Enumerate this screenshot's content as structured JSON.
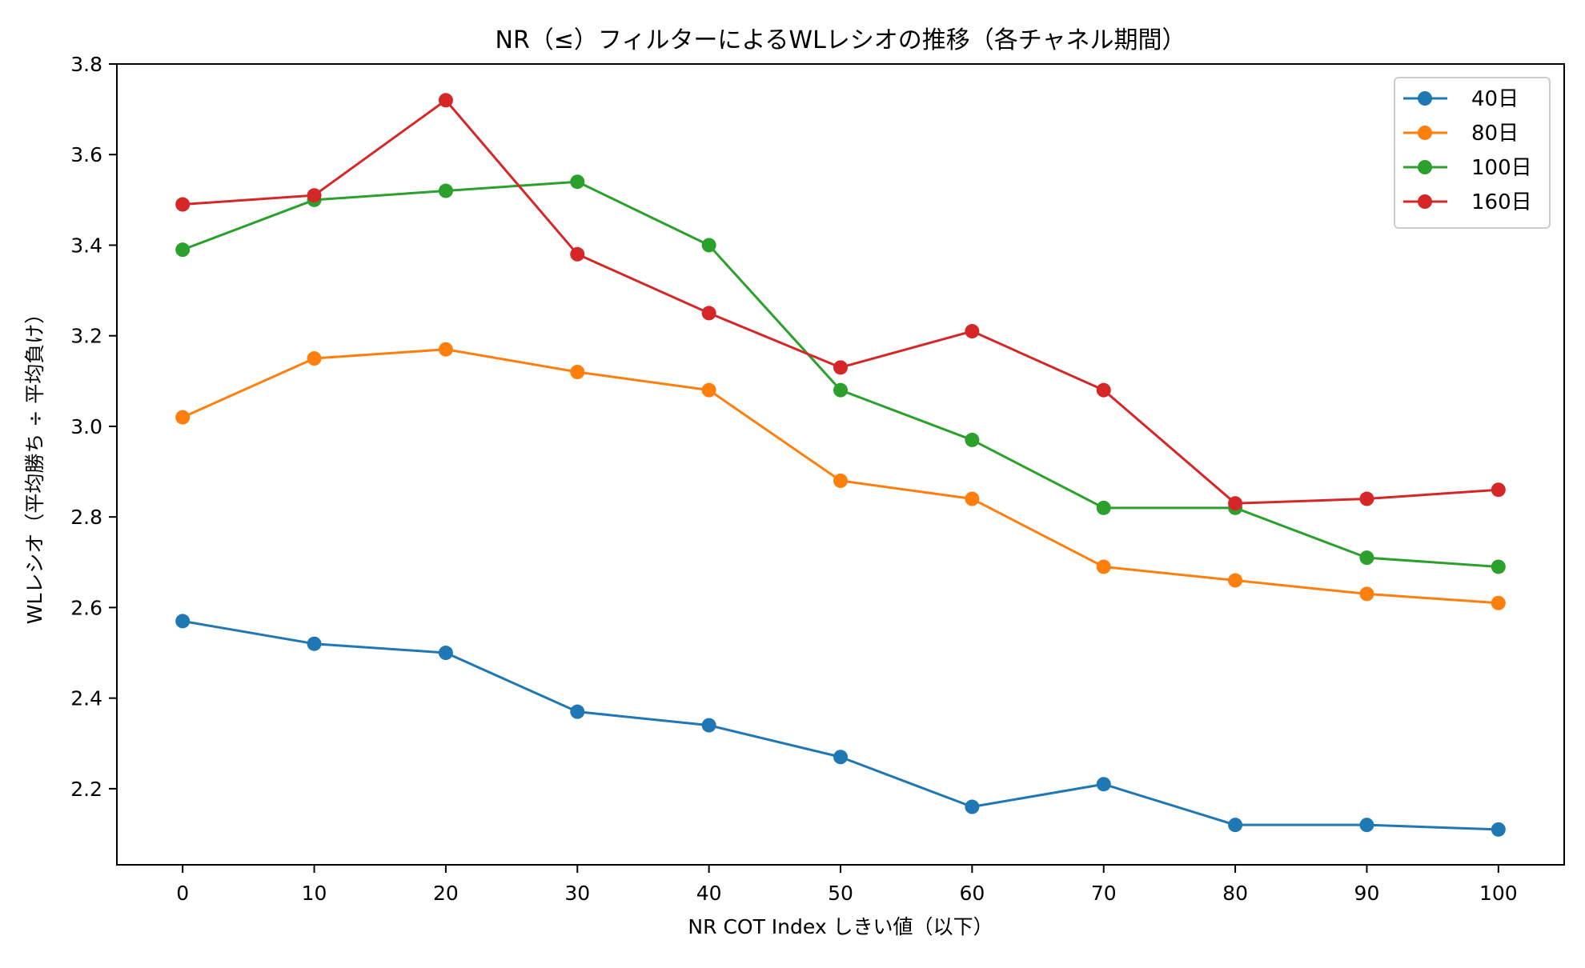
{
  "chart_data": {
    "type": "line",
    "title": "NR（≤）フィルターによるWLレシオの推移（各チャネル期間）",
    "xlabel": "NR COT Index しきい値（以下）",
    "ylabel": "WLレシオ（平均勝ち ÷ 平均負け）",
    "x": [
      0,
      10,
      20,
      30,
      40,
      50,
      60,
      70,
      80,
      90,
      100
    ],
    "xticks": [
      "0",
      "10",
      "20",
      "30",
      "40",
      "50",
      "60",
      "70",
      "80",
      "90",
      "100"
    ],
    "yticks": [
      "2.2",
      "2.4",
      "2.6",
      "2.8",
      "3.0",
      "3.2",
      "3.4",
      "3.6",
      "3.8"
    ],
    "xlim": [
      -5,
      105
    ],
    "ylim": [
      2.032,
      3.8
    ],
    "grid": false,
    "legend_position": "top-right",
    "series": [
      {
        "name": "40日",
        "color": "#1f77b4",
        "values": [
          2.57,
          2.52,
          2.5,
          2.37,
          2.34,
          2.27,
          2.16,
          2.21,
          2.12,
          2.12,
          2.11
        ]
      },
      {
        "name": "80日",
        "color": "#ff7f0e",
        "values": [
          3.02,
          3.15,
          3.17,
          3.12,
          3.08,
          2.88,
          2.84,
          2.69,
          2.66,
          2.63,
          2.61
        ]
      },
      {
        "name": "100日",
        "color": "#2ca02c",
        "values": [
          3.39,
          3.5,
          3.52,
          3.54,
          3.4,
          3.08,
          2.97,
          2.82,
          2.82,
          2.71,
          2.69
        ]
      },
      {
        "name": "160日",
        "color": "#d62728",
        "values": [
          3.49,
          3.51,
          3.72,
          3.38,
          3.25,
          3.13,
          3.21,
          3.08,
          2.83,
          2.84,
          2.86
        ]
      }
    ]
  }
}
